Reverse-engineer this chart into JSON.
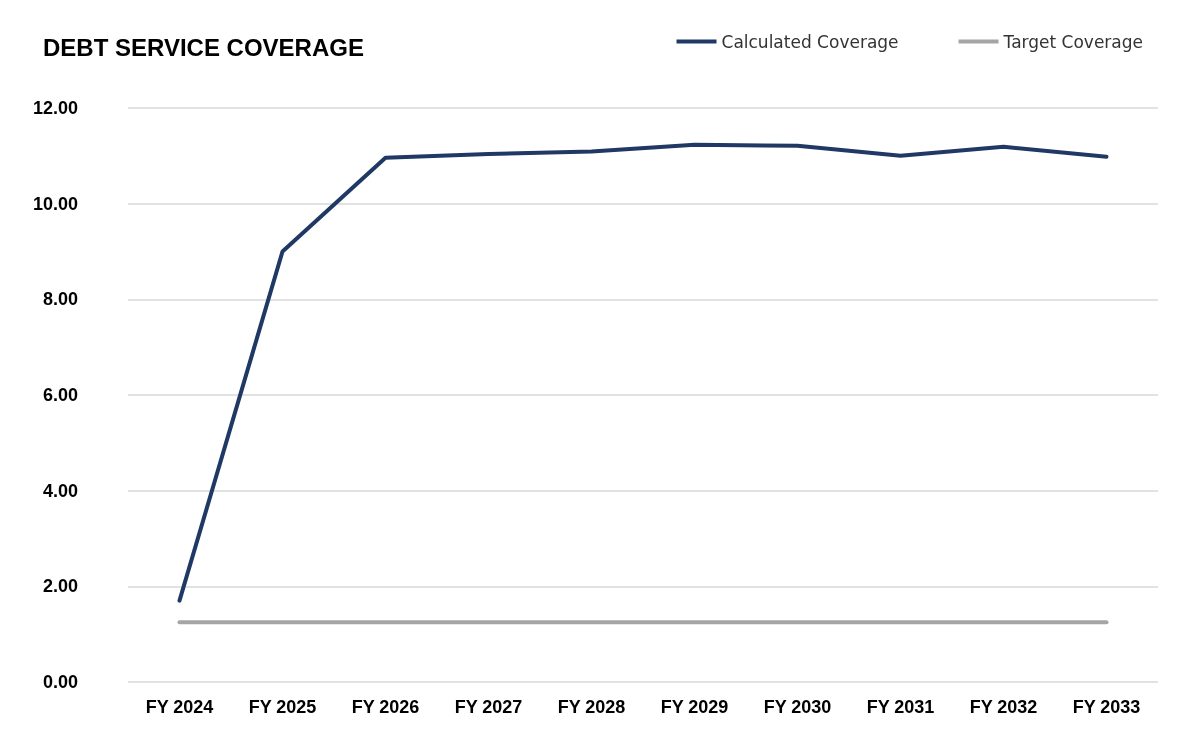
{
  "chart_data": {
    "type": "line",
    "title": "DEBT SERVICE COVERAGE",
    "categories": [
      "FY 2024",
      "FY 2025",
      "FY 2026",
      "FY 2027",
      "FY 2028",
      "FY 2029",
      "FY 2030",
      "FY 2031",
      "FY 2032",
      "FY 2033"
    ],
    "series": [
      {
        "name": "Calculated Coverage",
        "color": "#203864",
        "values": [
          1.7,
          9.0,
          10.96,
          11.04,
          11.09,
          11.23,
          11.21,
          11.0,
          11.19,
          10.98
        ]
      },
      {
        "name": "Target Coverage",
        "color": "#a5a5a5",
        "values": [
          1.25,
          1.25,
          1.25,
          1.25,
          1.25,
          1.25,
          1.25,
          1.25,
          1.25,
          1.25
        ]
      }
    ],
    "ylim": [
      0,
      12
    ],
    "yticks": [
      {
        "value": 0,
        "label": "0.00"
      },
      {
        "value": 2,
        "label": "2.00"
      },
      {
        "value": 4,
        "label": "4.00"
      },
      {
        "value": 6,
        "label": "6.00"
      },
      {
        "value": 8,
        "label": "8.00"
      },
      {
        "value": 10,
        "label": "10.00"
      },
      {
        "value": 12,
        "label": "12.00"
      }
    ],
    "grid": "y",
    "legend": "top right",
    "marker": "none",
    "line_style": "solid"
  }
}
